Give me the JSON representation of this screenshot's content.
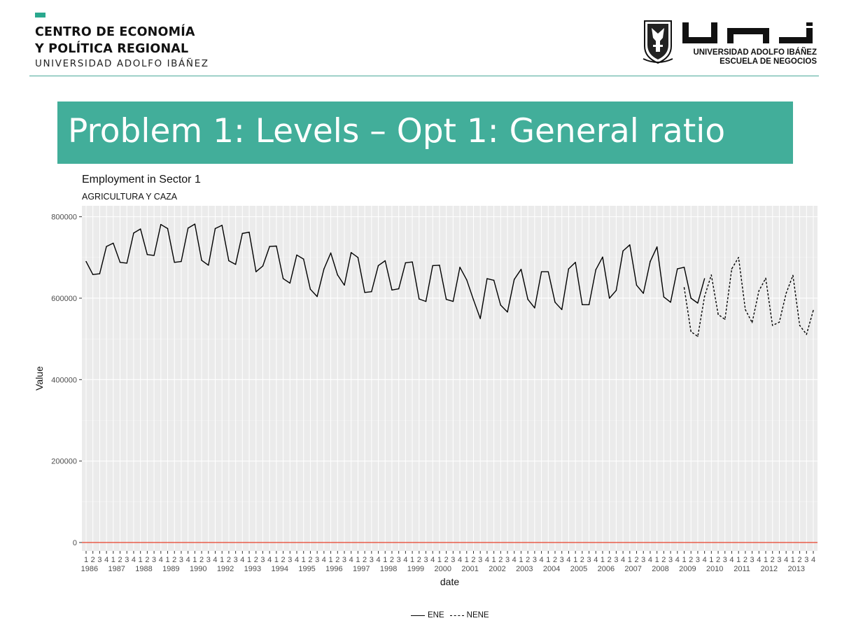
{
  "header": {
    "org_line1": "CENTRO DE ECONOMÍA",
    "org_line2": "Y POLÍTICA REGIONAL",
    "org_line3": "UNIVERSIDAD ADOLFO IBÁÑEZ",
    "logo_line1": "UNIVERSIDAD ADOLFO IBÁÑEZ",
    "logo_line2": "ESCUELA DE NEGOCIOS",
    "logo_word": "UAI"
  },
  "slide_title": "Problem 1: Levels – Opt 1: General ratio",
  "colors": {
    "title_bar": "#42ae9a",
    "accent": "#2aa88e",
    "panel": "#ebebeb",
    "zero_line": "#e8402a"
  },
  "chart_data": {
    "type": "line",
    "title": "Employment in Sector  1",
    "subtitle": "AGRICULTURA Y CAZA",
    "xlabel": "date",
    "ylabel": "Value",
    "ylim": [
      0,
      820000
    ],
    "yticks": [
      0,
      200000,
      400000,
      600000,
      800000
    ],
    "ytick_labels": [
      "0",
      "200000",
      "400000",
      "600000",
      "800000"
    ],
    "x_quarter_labels": [
      "1",
      "2",
      "3",
      "4"
    ],
    "x_year_labels": [
      "1986",
      "1987",
      "1988",
      "1989",
      "1990",
      "1992",
      "1993",
      "1994",
      "1995",
      "1996",
      "1997",
      "1998",
      "1999",
      "2000",
      "2001",
      "2002",
      "2003",
      "2004",
      "2005",
      "2006",
      "2007",
      "2008",
      "2009",
      "2010",
      "2011",
      "2012",
      "2013"
    ],
    "reference_line": {
      "y": 0,
      "color": "#e8402a"
    },
    "grid": true,
    "legend_position": "bottom",
    "series": [
      {
        "name": "ENE",
        "linetype": "solid",
        "start_index": 0,
        "values": [
          690000,
          658000,
          660000,
          727000,
          735000,
          688000,
          686000,
          760000,
          770000,
          707000,
          705000,
          781000,
          771000,
          688000,
          690000,
          772000,
          782000,
          693000,
          681000,
          771000,
          779000,
          692000,
          683000,
          759000,
          762000,
          665000,
          679000,
          727000,
          728000,
          648000,
          637000,
          706000,
          696000,
          622000,
          604000,
          672000,
          711000,
          657000,
          632000,
          712000,
          700000,
          614000,
          616000,
          680000,
          692000,
          620000,
          623000,
          687000,
          689000,
          598000,
          592000,
          680000,
          681000,
          597000,
          592000,
          676000,
          645000,
          596000,
          550000,
          648000,
          644000,
          583000,
          566000,
          646000,
          671000,
          597000,
          576000,
          665000,
          665000,
          590000,
          572000,
          672000,
          688000,
          584000,
          584000,
          670000,
          701000,
          600000,
          619000,
          716000,
          731000,
          632000,
          612000,
          690000,
          726000,
          603000,
          590000,
          672000,
          676000,
          600000,
          588000,
          648000
        ]
      },
      {
        "name": "NENE",
        "linetype": "dashed",
        "start_index": 88,
        "values": [
          626000,
          518000,
          506000,
          604000,
          657000,
          560000,
          548000,
          672000,
          700000,
          572000,
          540000,
          618000,
          649000,
          533000,
          541000,
          612000,
          656000,
          533000,
          511000,
          570000
        ]
      }
    ]
  },
  "legend": {
    "items": [
      {
        "label": "ENE",
        "linetype": "solid"
      },
      {
        "label": "NENE",
        "linetype": "dashed"
      }
    ]
  }
}
